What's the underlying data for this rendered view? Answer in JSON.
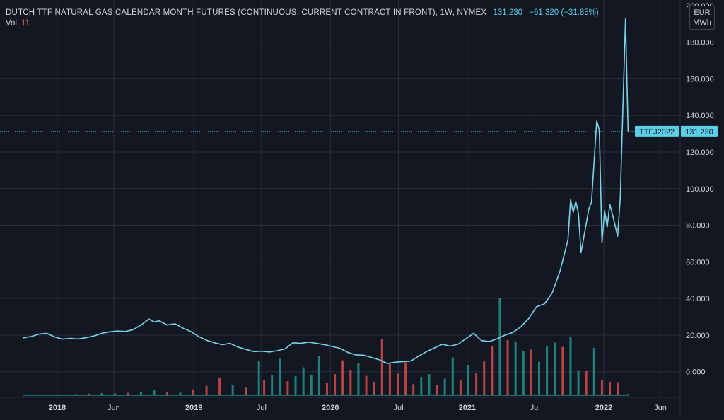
{
  "header": {
    "title": "DUTCH TTF NATURAL GAS CALENDAR MONTH FUTURES (CONTINUOUS: CURRENT CONTRACT IN FRONT), 1W, NYMEX",
    "last": "131.230",
    "change": "−61.320 (−31.85%)",
    "vol_label": "Vol",
    "vol_value": "11"
  },
  "unit": {
    "currency": "EUR",
    "measure": "MWh"
  },
  "price_tag": {
    "symbol": "TTFJ2022",
    "value": "131.230"
  },
  "colors": {
    "background": "#131722",
    "line": "#7dd3e8",
    "vol_up": "#26a69a",
    "vol_down": "#ef5350",
    "grid": "#2a2e39",
    "tag": "#5ccfe6"
  },
  "chart_data": {
    "type": "line",
    "title": "DUTCH TTF NATURAL GAS CALENDAR MONTH FUTURES (CONTINUOUS: CURRENT CONTRACT IN FRONT), 1W, NYMEX",
    "xlabel": "",
    "ylabel": "",
    "grid": true,
    "y_ticks": [
      "0.000",
      "20.000",
      "40.000",
      "60.000",
      "80.000",
      "100.000",
      "120.000",
      "140.000",
      "160.000",
      "180.000",
      "200.000"
    ],
    "ylim": [
      -14,
      203
    ],
    "x_ticks": [
      {
        "label": "2018",
        "date": "2018-01-01",
        "bold": true
      },
      {
        "label": "Jun",
        "date": "2018-06-01",
        "bold": false
      },
      {
        "label": "2019",
        "date": "2019-01-01",
        "bold": true
      },
      {
        "label": "Jul",
        "date": "2019-07-01",
        "bold": false
      },
      {
        "label": "2020",
        "date": "2020-01-01",
        "bold": true
      },
      {
        "label": "Jul",
        "date": "2020-07-01",
        "bold": false
      },
      {
        "label": "2021",
        "date": "2021-01-01",
        "bold": true
      },
      {
        "label": "Jul",
        "date": "2021-07-01",
        "bold": false
      },
      {
        "label": "2022",
        "date": "2022-01-01",
        "bold": true
      },
      {
        "label": "Jun",
        "date": "2022-06-01",
        "bold": false
      }
    ],
    "xlim": [
      "2017-08-01",
      "2022-07-24"
    ],
    "series": [
      {
        "values": [
          [
            "2017-10-02",
            18.5
          ],
          [
            "2017-10-23",
            19.2
          ],
          [
            "2017-11-13",
            20.5
          ],
          [
            "2017-12-04",
            21.0
          ],
          [
            "2017-12-25",
            19.0
          ],
          [
            "2018-01-15",
            17.8
          ],
          [
            "2018-02-05",
            18.2
          ],
          [
            "2018-02-26",
            17.9
          ],
          [
            "2018-03-19",
            18.6
          ],
          [
            "2018-04-09",
            19.5
          ],
          [
            "2018-04-30",
            21.0
          ],
          [
            "2018-05-21",
            21.8
          ],
          [
            "2018-06-11",
            22.2
          ],
          [
            "2018-07-02",
            22.0
          ],
          [
            "2018-07-23",
            23.0
          ],
          [
            "2018-08-13",
            25.5
          ],
          [
            "2018-09-03",
            28.8
          ],
          [
            "2018-09-17",
            27.2
          ],
          [
            "2018-10-01",
            27.8
          ],
          [
            "2018-10-22",
            25.5
          ],
          [
            "2018-11-12",
            26.2
          ],
          [
            "2018-12-03",
            23.8
          ],
          [
            "2018-12-24",
            22.0
          ],
          [
            "2019-01-14",
            19.2
          ],
          [
            "2019-02-04",
            17.2
          ],
          [
            "2019-02-25",
            15.8
          ],
          [
            "2019-03-18",
            14.8
          ],
          [
            "2019-04-08",
            15.5
          ],
          [
            "2019-04-29",
            13.5
          ],
          [
            "2019-05-20",
            12.2
          ],
          [
            "2019-06-10",
            11.0
          ],
          [
            "2019-07-01",
            11.2
          ],
          [
            "2019-07-22",
            10.8
          ],
          [
            "2019-08-12",
            11.5
          ],
          [
            "2019-09-02",
            12.5
          ],
          [
            "2019-09-23",
            15.8
          ],
          [
            "2019-10-14",
            15.5
          ],
          [
            "2019-11-04",
            16.2
          ],
          [
            "2019-11-25",
            15.5
          ],
          [
            "2019-12-16",
            14.8
          ],
          [
            "2020-01-06",
            13.8
          ],
          [
            "2020-01-27",
            12.8
          ],
          [
            "2020-02-17",
            10.5
          ],
          [
            "2020-03-09",
            9.2
          ],
          [
            "2020-03-30",
            9.0
          ],
          [
            "2020-04-20",
            7.8
          ],
          [
            "2020-05-11",
            6.5
          ],
          [
            "2020-06-01",
            4.5
          ],
          [
            "2020-06-22",
            5.2
          ],
          [
            "2020-07-13",
            5.5
          ],
          [
            "2020-08-03",
            5.8
          ],
          [
            "2020-08-24",
            8.5
          ],
          [
            "2020-09-14",
            11.0
          ],
          [
            "2020-10-05",
            13.0
          ],
          [
            "2020-10-26",
            15.0
          ],
          [
            "2020-11-16",
            14.0
          ],
          [
            "2020-12-07",
            15.0
          ],
          [
            "2020-12-28",
            18.0
          ],
          [
            "2021-01-18",
            21.0
          ],
          [
            "2021-02-08",
            17.0
          ],
          [
            "2021-03-01",
            16.5
          ],
          [
            "2021-03-22",
            18.0
          ],
          [
            "2021-04-12",
            20.0
          ],
          [
            "2021-05-03",
            21.5
          ],
          [
            "2021-05-24",
            24.5
          ],
          [
            "2021-06-14",
            29.0
          ],
          [
            "2021-07-05",
            35.5
          ],
          [
            "2021-07-26",
            37.0
          ],
          [
            "2021-08-16",
            43.0
          ],
          [
            "2021-09-06",
            55.0
          ],
          [
            "2021-09-27",
            72.0
          ],
          [
            "2021-10-04",
            94.0
          ],
          [
            "2021-10-11",
            87.0
          ],
          [
            "2021-10-18",
            93.0
          ],
          [
            "2021-10-25",
            86.5
          ],
          [
            "2021-11-01",
            65.0
          ],
          [
            "2021-11-08",
            73.0
          ],
          [
            "2021-11-15",
            81.0
          ],
          [
            "2021-11-22",
            89.0
          ],
          [
            "2021-11-29",
            92.5
          ],
          [
            "2021-12-13",
            137.0
          ],
          [
            "2021-12-20",
            132.0
          ],
          [
            "2021-12-27",
            70.5
          ],
          [
            "2022-01-03",
            88.0
          ],
          [
            "2022-01-10",
            79.0
          ],
          [
            "2022-01-17",
            91.5
          ],
          [
            "2022-01-24",
            86.0
          ],
          [
            "2022-01-31",
            80.0
          ],
          [
            "2022-02-07",
            74.0
          ],
          [
            "2022-02-14",
            95.0
          ],
          [
            "2022-02-28",
            192.6
          ],
          [
            "2022-03-07",
            131.23
          ]
        ]
      }
    ],
    "volume": {
      "min_date": "2017-10-02",
      "max_date": "2022-03-07",
      "peak_value": 43.0,
      "bars": [
        [
          "2017-10-02",
          0.2,
          "up"
        ],
        [
          "2017-11-06",
          0.3,
          "up"
        ],
        [
          "2017-12-11",
          0.3,
          "up"
        ],
        [
          "2018-01-15",
          0.2,
          "down"
        ],
        [
          "2018-02-19",
          0.5,
          "up"
        ],
        [
          "2018-03-26",
          0.7,
          "down"
        ],
        [
          "2018-04-30",
          0.9,
          "up"
        ],
        [
          "2018-06-04",
          0.8,
          "up"
        ],
        [
          "2018-07-09",
          1.1,
          "down"
        ],
        [
          "2018-08-13",
          1.6,
          "up"
        ],
        [
          "2018-09-17",
          2.2,
          "up"
        ],
        [
          "2018-10-22",
          1.4,
          "down"
        ],
        [
          "2018-11-26",
          1.2,
          "up"
        ],
        [
          "2018-12-31",
          2.6,
          "down"
        ],
        [
          "2019-02-04",
          4.2,
          "down"
        ],
        [
          "2019-03-11",
          7.9,
          "down"
        ],
        [
          "2019-04-15",
          4.6,
          "up"
        ],
        [
          "2019-05-20",
          3.4,
          "down"
        ],
        [
          "2019-06-24",
          15.4,
          "up"
        ],
        [
          "2019-07-08",
          6.6,
          "down"
        ],
        [
          "2019-07-29",
          9.1,
          "up"
        ],
        [
          "2019-08-19",
          16.2,
          "up"
        ],
        [
          "2019-09-09",
          6.2,
          "down"
        ],
        [
          "2019-09-30",
          8.5,
          "up"
        ],
        [
          "2019-10-21",
          12.4,
          "up"
        ],
        [
          "2019-11-11",
          8.8,
          "up"
        ],
        [
          "2019-12-02",
          17.3,
          "up"
        ],
        [
          "2019-12-23",
          5.4,
          "down"
        ],
        [
          "2020-01-13",
          9.4,
          "down"
        ],
        [
          "2020-02-03",
          15.5,
          "down"
        ],
        [
          "2020-02-24",
          11.3,
          "down"
        ],
        [
          "2020-03-16",
          14.1,
          "up"
        ],
        [
          "2020-04-06",
          8.6,
          "down"
        ],
        [
          "2020-04-27",
          6.0,
          "down"
        ],
        [
          "2020-05-18",
          24.8,
          "down"
        ],
        [
          "2020-06-08",
          13.9,
          "down"
        ],
        [
          "2020-06-29",
          9.6,
          "down"
        ],
        [
          "2020-07-20",
          14.6,
          "down"
        ],
        [
          "2020-08-10",
          4.9,
          "down"
        ],
        [
          "2020-08-31",
          8.1,
          "up"
        ],
        [
          "2020-09-21",
          9.4,
          "up"
        ],
        [
          "2020-10-12",
          4.6,
          "down"
        ],
        [
          "2020-11-02",
          7.4,
          "up"
        ],
        [
          "2020-11-23",
          16.8,
          "up"
        ],
        [
          "2020-12-14",
          6.5,
          "down"
        ],
        [
          "2021-01-04",
          13.5,
          "up"
        ],
        [
          "2021-01-25",
          9.7,
          "down"
        ],
        [
          "2021-02-15",
          15.0,
          "down"
        ],
        [
          "2021-03-08",
          21.8,
          "down"
        ],
        [
          "2021-03-29",
          43.0,
          "up"
        ],
        [
          "2021-04-19",
          24.5,
          "down"
        ],
        [
          "2021-05-10",
          23.6,
          "up"
        ],
        [
          "2021-05-31",
          19.7,
          "up"
        ],
        [
          "2021-06-21",
          20.3,
          "down"
        ],
        [
          "2021-07-12",
          14.9,
          "up"
        ],
        [
          "2021-08-02",
          21.8,
          "up"
        ],
        [
          "2021-08-23",
          23.4,
          "up"
        ],
        [
          "2021-09-13",
          21.5,
          "down"
        ],
        [
          "2021-10-04",
          25.8,
          "up"
        ],
        [
          "2021-10-25",
          11.1,
          "up"
        ],
        [
          "2021-11-15",
          10.7,
          "down"
        ],
        [
          "2021-12-06",
          21.0,
          "up"
        ],
        [
          "2021-12-27",
          6.6,
          "down"
        ],
        [
          "2022-01-17",
          6.0,
          "down"
        ],
        [
          "2022-02-07",
          5.8,
          "down"
        ],
        [
          "2022-03-07",
          0.6,
          "up"
        ]
      ]
    }
  }
}
